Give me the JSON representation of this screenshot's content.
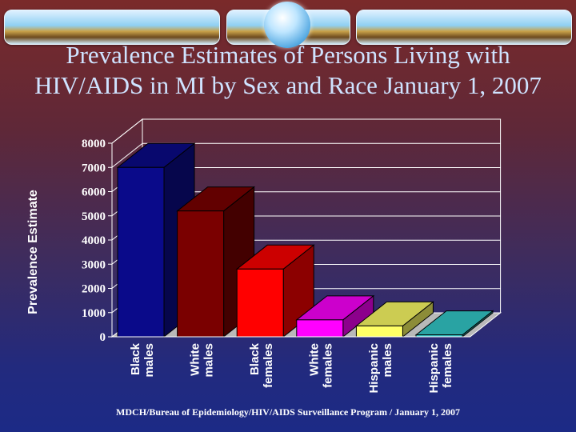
{
  "slide": {
    "title_line1": "Prevalence Estimates of Persons Living with",
    "title_line2": "HIV/AIDS in MI by Sex and Race January 1, 2007",
    "footer": "MDCH/Bureau of Epidemiology/HIV/AIDS Surveillance Program / January 1, 2007"
  },
  "chart_data": {
    "type": "bar",
    "title": "",
    "ylabel": "Prevalence Estimate",
    "xlabel": "",
    "ylim": [
      0,
      8000
    ],
    "yticks": [
      0,
      1000,
      2000,
      3000,
      4000,
      5000,
      6000,
      7000,
      8000
    ],
    "grid": true,
    "three_d": true,
    "categories": [
      [
        "Black",
        "males"
      ],
      [
        "White",
        "males"
      ],
      [
        "Black",
        "females"
      ],
      [
        "White",
        "females"
      ],
      [
        "Hispanic",
        "males"
      ],
      [
        "Hispanic",
        "females"
      ]
    ],
    "values": [
      7000,
      5200,
      2800,
      700,
      450,
      80
    ],
    "colors": [
      "#0a0a8a",
      "#7a0000",
      "#ff0000",
      "#ff00ff",
      "#ffff66",
      "#33cccc"
    ]
  }
}
